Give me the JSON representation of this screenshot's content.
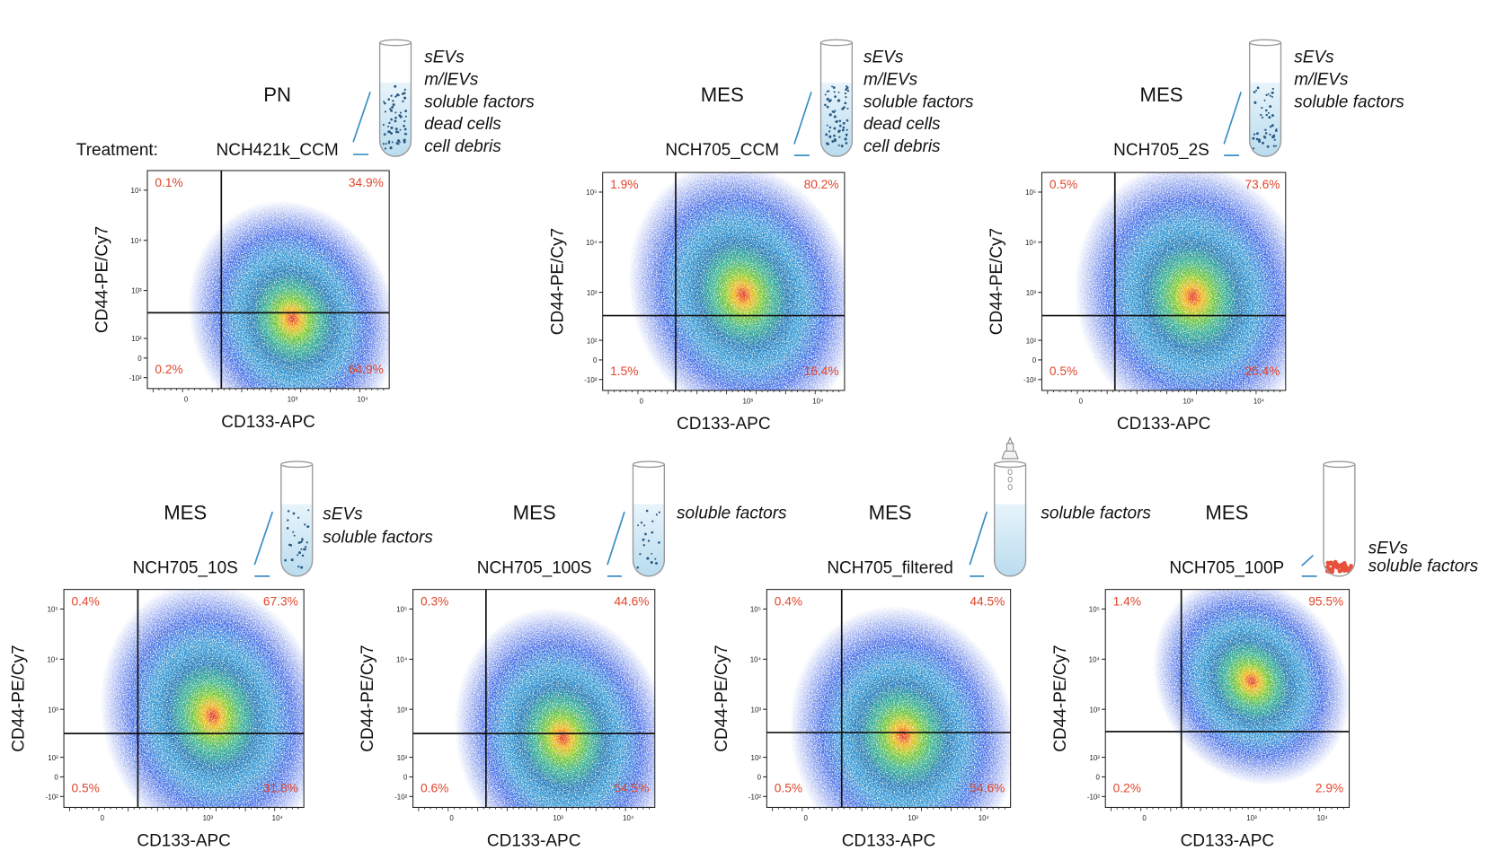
{
  "axes": {
    "x_label": "CD133-APC",
    "y_label": "CD44-PE/Cy7",
    "x_ticks": [
      "0",
      "10³",
      "10⁴"
    ],
    "y_ticks": [
      "10⁵",
      "10⁴",
      "10³",
      "10²",
      "0",
      "-10²"
    ]
  },
  "treatment_label": "Treatment:",
  "panels": [
    {
      "subtype": "PN",
      "treatment": "NCH421k_CCM",
      "contents": [
        "sEVs",
        "m/lEVs",
        "soluble factors",
        "dead cells",
        "cell debris"
      ],
      "quadrants": {
        "upper_left": "0.1%",
        "upper_right": "34.9%",
        "lower_left": "0.2%",
        "lower_right": "64.9%"
      }
    },
    {
      "subtype": "MES",
      "treatment": "NCH705_CCM",
      "contents": [
        "sEVs",
        "m/lEVs",
        "soluble factors",
        "dead cells",
        "cell debris"
      ],
      "quadrants": {
        "upper_left": "1.9%",
        "upper_right": "80.2%",
        "lower_left": "1.5%",
        "lower_right": "16.4%"
      }
    },
    {
      "subtype": "MES",
      "treatment": "NCH705_2S",
      "contents": [
        "sEVs",
        "m/lEVs",
        "soluble factors"
      ],
      "quadrants": {
        "upper_left": "0.5%",
        "upper_right": "73.6%",
        "lower_left": "0.5%",
        "lower_right": "25.4%"
      }
    },
    {
      "subtype": "MES",
      "treatment": "NCH705_10S",
      "contents": [
        "sEVs",
        "soluble factors"
      ],
      "quadrants": {
        "upper_left": "0.4%",
        "upper_right": "67.3%",
        "lower_left": "0.5%",
        "lower_right": "31.8%"
      }
    },
    {
      "subtype": "MES",
      "treatment": "NCH705_100S",
      "contents": [
        "soluble factors"
      ],
      "quadrants": {
        "upper_left": "0.3%",
        "upper_right": "44.6%",
        "lower_left": "0.6%",
        "lower_right": "54.5%"
      }
    },
    {
      "subtype": "MES",
      "treatment": "NCH705_filtered",
      "contents": [
        "soluble factors"
      ],
      "quadrants": {
        "upper_left": "0.4%",
        "upper_right": "44.5%",
        "lower_left": "0.5%",
        "lower_right": "54.6%"
      }
    },
    {
      "subtype": "MES",
      "treatment": "NCH705_100P",
      "contents": [
        "sEVs",
        "soluble factors"
      ],
      "quadrants": {
        "upper_left": "1.4%",
        "upper_right": "95.5%",
        "lower_left": "0.2%",
        "lower_right": "2.9%"
      }
    }
  ]
}
